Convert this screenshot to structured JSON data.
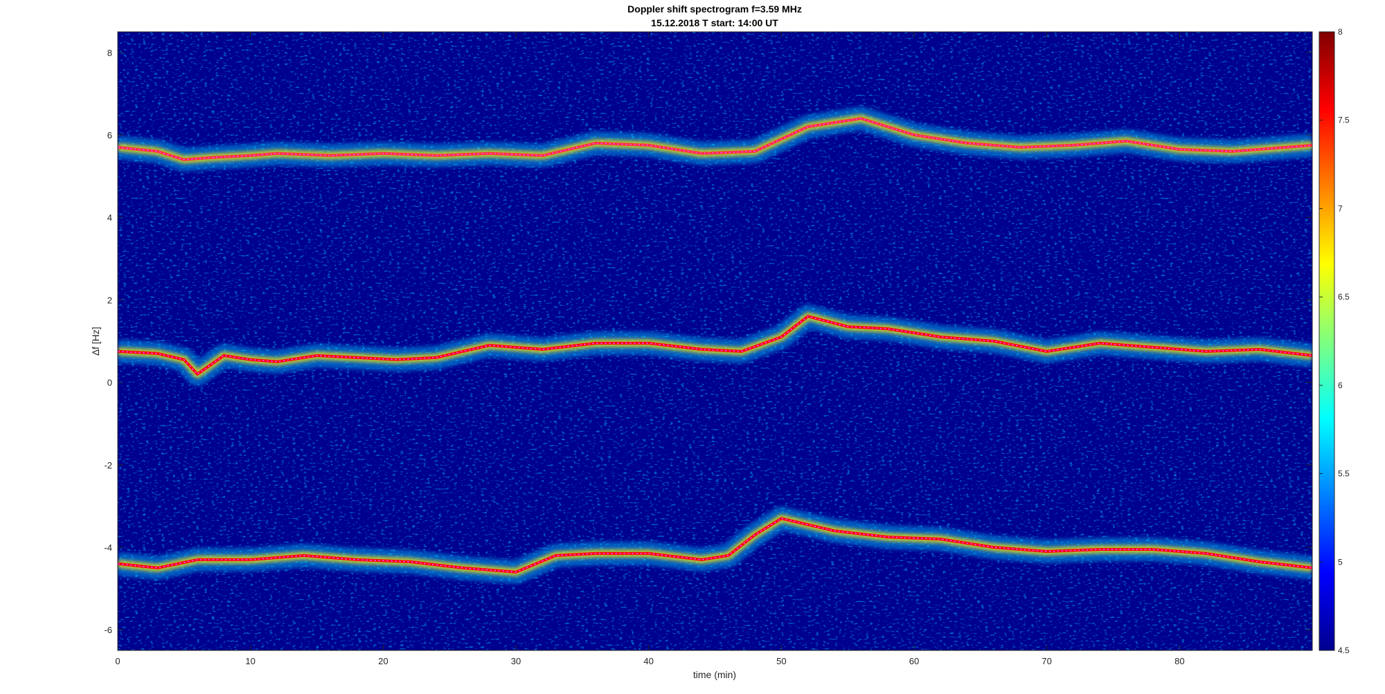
{
  "chart_data": {
    "type": "heatmap",
    "title": "Doppler shift spectrogram f=3.59 MHz",
    "subtitle": "15.12.2018   T start: 14:00 UT",
    "xlabel": "time (min)",
    "ylabel": "∆f [Hz]",
    "xlim": [
      0,
      90
    ],
    "ylim": [
      -6.5,
      8.5
    ],
    "x_ticks": [
      0,
      10,
      20,
      30,
      40,
      50,
      60,
      70,
      80
    ],
    "y_ticks": [
      -6,
      -4,
      -2,
      0,
      2,
      4,
      6,
      8
    ],
    "colorbar": {
      "colormap": "jet",
      "range": [
        4.5,
        8
      ],
      "ticks": [
        4.5,
        5,
        5.5,
        6,
        6.5,
        7,
        7.5,
        8
      ]
    },
    "background_color": "#00008f",
    "grid": false,
    "legend": "none",
    "series": [
      {
        "color": "#ff3030",
        "x": [
          0,
          3,
          5,
          7,
          10,
          12,
          16,
          20,
          24,
          28,
          32,
          36,
          40,
          44,
          48,
          52,
          56,
          60,
          64,
          68,
          72,
          76,
          80,
          84,
          88,
          90
        ],
        "y": [
          5.7,
          5.6,
          5.4,
          5.45,
          5.5,
          5.55,
          5.5,
          5.55,
          5.5,
          5.55,
          5.5,
          5.8,
          5.75,
          5.55,
          5.6,
          6.2,
          6.4,
          6.0,
          5.8,
          5.7,
          5.75,
          5.85,
          5.65,
          5.6,
          5.7,
          5.75
        ]
      },
      {
        "color": "#ff0000",
        "x": [
          0,
          3,
          5,
          6,
          8,
          10,
          12,
          15,
          18,
          21,
          24,
          28,
          32,
          36,
          40,
          44,
          47,
          50,
          52,
          55,
          58,
          62,
          66,
          70,
          74,
          78,
          82,
          86,
          90
        ],
        "y": [
          0.75,
          0.7,
          0.55,
          0.2,
          0.65,
          0.55,
          0.5,
          0.65,
          0.6,
          0.55,
          0.6,
          0.9,
          0.8,
          0.95,
          0.95,
          0.8,
          0.75,
          1.1,
          1.6,
          1.35,
          1.3,
          1.1,
          1.0,
          0.75,
          0.95,
          0.85,
          0.75,
          0.8,
          0.65
        ]
      },
      {
        "color": "#ff0000",
        "x": [
          0,
          3,
          6,
          10,
          14,
          18,
          22,
          26,
          30,
          33,
          36,
          40,
          44,
          46,
          48,
          50,
          54,
          58,
          62,
          66,
          70,
          74,
          78,
          82,
          86,
          90
        ],
        "y": [
          -4.4,
          -4.5,
          -4.3,
          -4.3,
          -4.2,
          -4.3,
          -4.35,
          -4.5,
          -4.6,
          -4.2,
          -4.15,
          -4.15,
          -4.3,
          -4.2,
          -3.7,
          -3.3,
          -3.6,
          -3.75,
          -3.8,
          -4.0,
          -4.1,
          -4.05,
          -4.05,
          -4.15,
          -4.35,
          -4.5
        ]
      }
    ]
  }
}
